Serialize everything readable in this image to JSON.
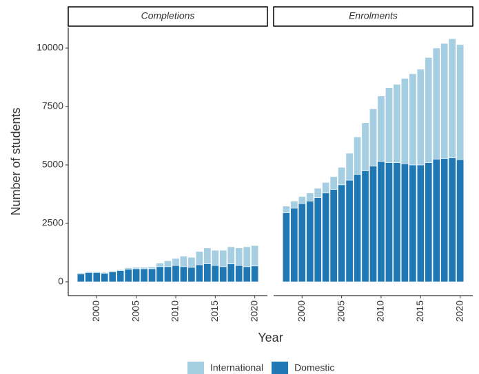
{
  "chart_data": [
    {
      "type": "bar",
      "stacked": true,
      "title": "Completions",
      "y_label": "Number of students",
      "x_label": "Year",
      "x": [
        1998,
        1999,
        2000,
        2001,
        2002,
        2003,
        2004,
        2005,
        2006,
        2007,
        2008,
        2009,
        2010,
        2011,
        2012,
        2013,
        2014,
        2015,
        2016,
        2017,
        2018,
        2019,
        2020
      ],
      "series": [
        {
          "name": "International",
          "color": "#a6cee3",
          "values": [
            40,
            30,
            30,
            30,
            50,
            40,
            60,
            60,
            60,
            80,
            150,
            250,
            300,
            450,
            430,
            570,
            670,
            650,
            700,
            730,
            750,
            850,
            870
          ]
        },
        {
          "name": "Domestic",
          "color": "#1f78b4",
          "values": [
            340,
            400,
            400,
            370,
            420,
            480,
            540,
            560,
            560,
            560,
            650,
            650,
            700,
            650,
            620,
            730,
            780,
            700,
            650,
            770,
            700,
            650,
            680
          ]
        }
      ],
      "xlim": [
        1996.4,
        2021.6
      ],
      "xticks": [
        2000,
        2005,
        2010,
        2015,
        2020
      ],
      "ylim": [
        -590,
        10880
      ],
      "yticks": [
        0,
        2500,
        5000,
        7500,
        10000
      ]
    },
    {
      "type": "bar",
      "stacked": true,
      "title": "Enrolments",
      "x": [
        1998,
        1999,
        2000,
        2001,
        2002,
        2003,
        2004,
        2005,
        2006,
        2007,
        2008,
        2009,
        2010,
        2011,
        2012,
        2013,
        2014,
        2015,
        2016,
        2017,
        2018,
        2019,
        2020
      ],
      "series": [
        {
          "name": "International",
          "color": "#a6cee3",
          "values": [
            290,
            300,
            300,
            350,
            400,
            450,
            550,
            750,
            1150,
            1600,
            2050,
            2450,
            2800,
            3200,
            3350,
            3650,
            3900,
            4100,
            4500,
            4750,
            4920,
            5100,
            4920
          ]
        },
        {
          "name": "Domestic",
          "color": "#1f78b4",
          "values": [
            2950,
            3150,
            3350,
            3450,
            3600,
            3800,
            3950,
            4150,
            4350,
            4600,
            4750,
            4950,
            5150,
            5100,
            5100,
            5050,
            5000,
            5000,
            5100,
            5250,
            5280,
            5300,
            5230
          ]
        }
      ],
      "xlim": [
        1996.4,
        2021.6
      ],
      "xticks": [
        2000,
        2005,
        2010,
        2015,
        2020
      ],
      "ylim": [
        -590,
        10880
      ]
    }
  ]
}
